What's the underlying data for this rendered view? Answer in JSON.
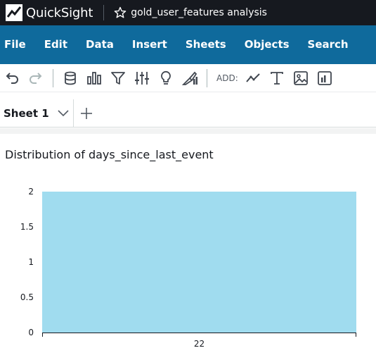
{
  "app": {
    "name": "QuickSight",
    "analysis_title": "gold_user_features analysis"
  },
  "icons": {
    "logo": "quicksight-logo-icon",
    "favorite": "star-icon"
  },
  "menu": {
    "items": [
      "File",
      "Edit",
      "Data",
      "Insert",
      "Sheets",
      "Objects",
      "Search"
    ]
  },
  "toolbar": {
    "add_label": "ADD:",
    "buttons": [
      "undo-icon",
      "redo-icon",
      "dataset-icon",
      "visualize-icon",
      "filter-icon",
      "parameters-icon",
      "insights-icon",
      "themes-icon",
      "add-line-chart-icon",
      "add-text-icon",
      "add-image-icon",
      "add-visual-icon"
    ]
  },
  "sheets": {
    "active_tab": "Sheet 1"
  },
  "visual": {
    "title": "Distribution of days_since_last_event"
  },
  "colors": {
    "topbar": "#16191f",
    "menubar": "#0f6a9c",
    "bar_fill": "#a0dcef"
  },
  "chart_data": {
    "type": "bar",
    "title": "Distribution of days_since_last_event",
    "categories": [
      "22"
    ],
    "values": [
      2
    ],
    "ylim": [
      0,
      2
    ],
    "yticks": [
      "0",
      "0.5",
      "1",
      "1.5",
      "2"
    ],
    "xlabel": "",
    "ylabel": "",
    "grid": false
  }
}
